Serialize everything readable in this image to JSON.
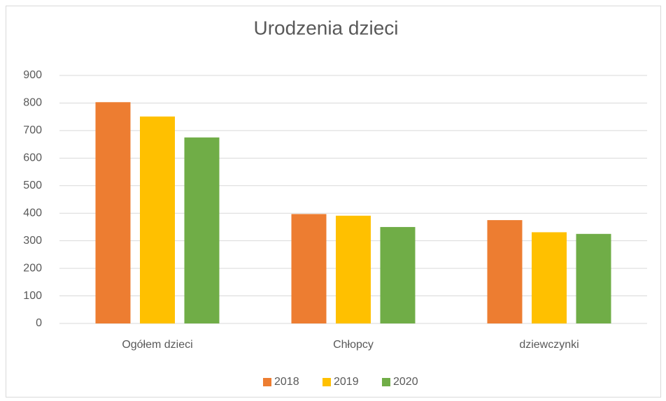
{
  "chart_data": {
    "type": "bar",
    "title": "Urodzenia dzieci",
    "categories": [
      "Ogółem dzieci",
      "Chłopcy",
      "dziewczynki"
    ],
    "series": [
      {
        "name": "2018",
        "color": "#ed7d31",
        "values": [
          803,
          397,
          375
        ]
      },
      {
        "name": "2019",
        "color": "#ffc000",
        "values": [
          751,
          391,
          331
        ]
      },
      {
        "name": "2020",
        "color": "#70ad47",
        "values": [
          675,
          350,
          325
        ]
      }
    ],
    "ylim": [
      0,
      900
    ],
    "yticks": [
      0,
      100,
      200,
      300,
      400,
      500,
      600,
      700,
      800,
      900
    ],
    "grid": true,
    "legend": "bottom"
  }
}
